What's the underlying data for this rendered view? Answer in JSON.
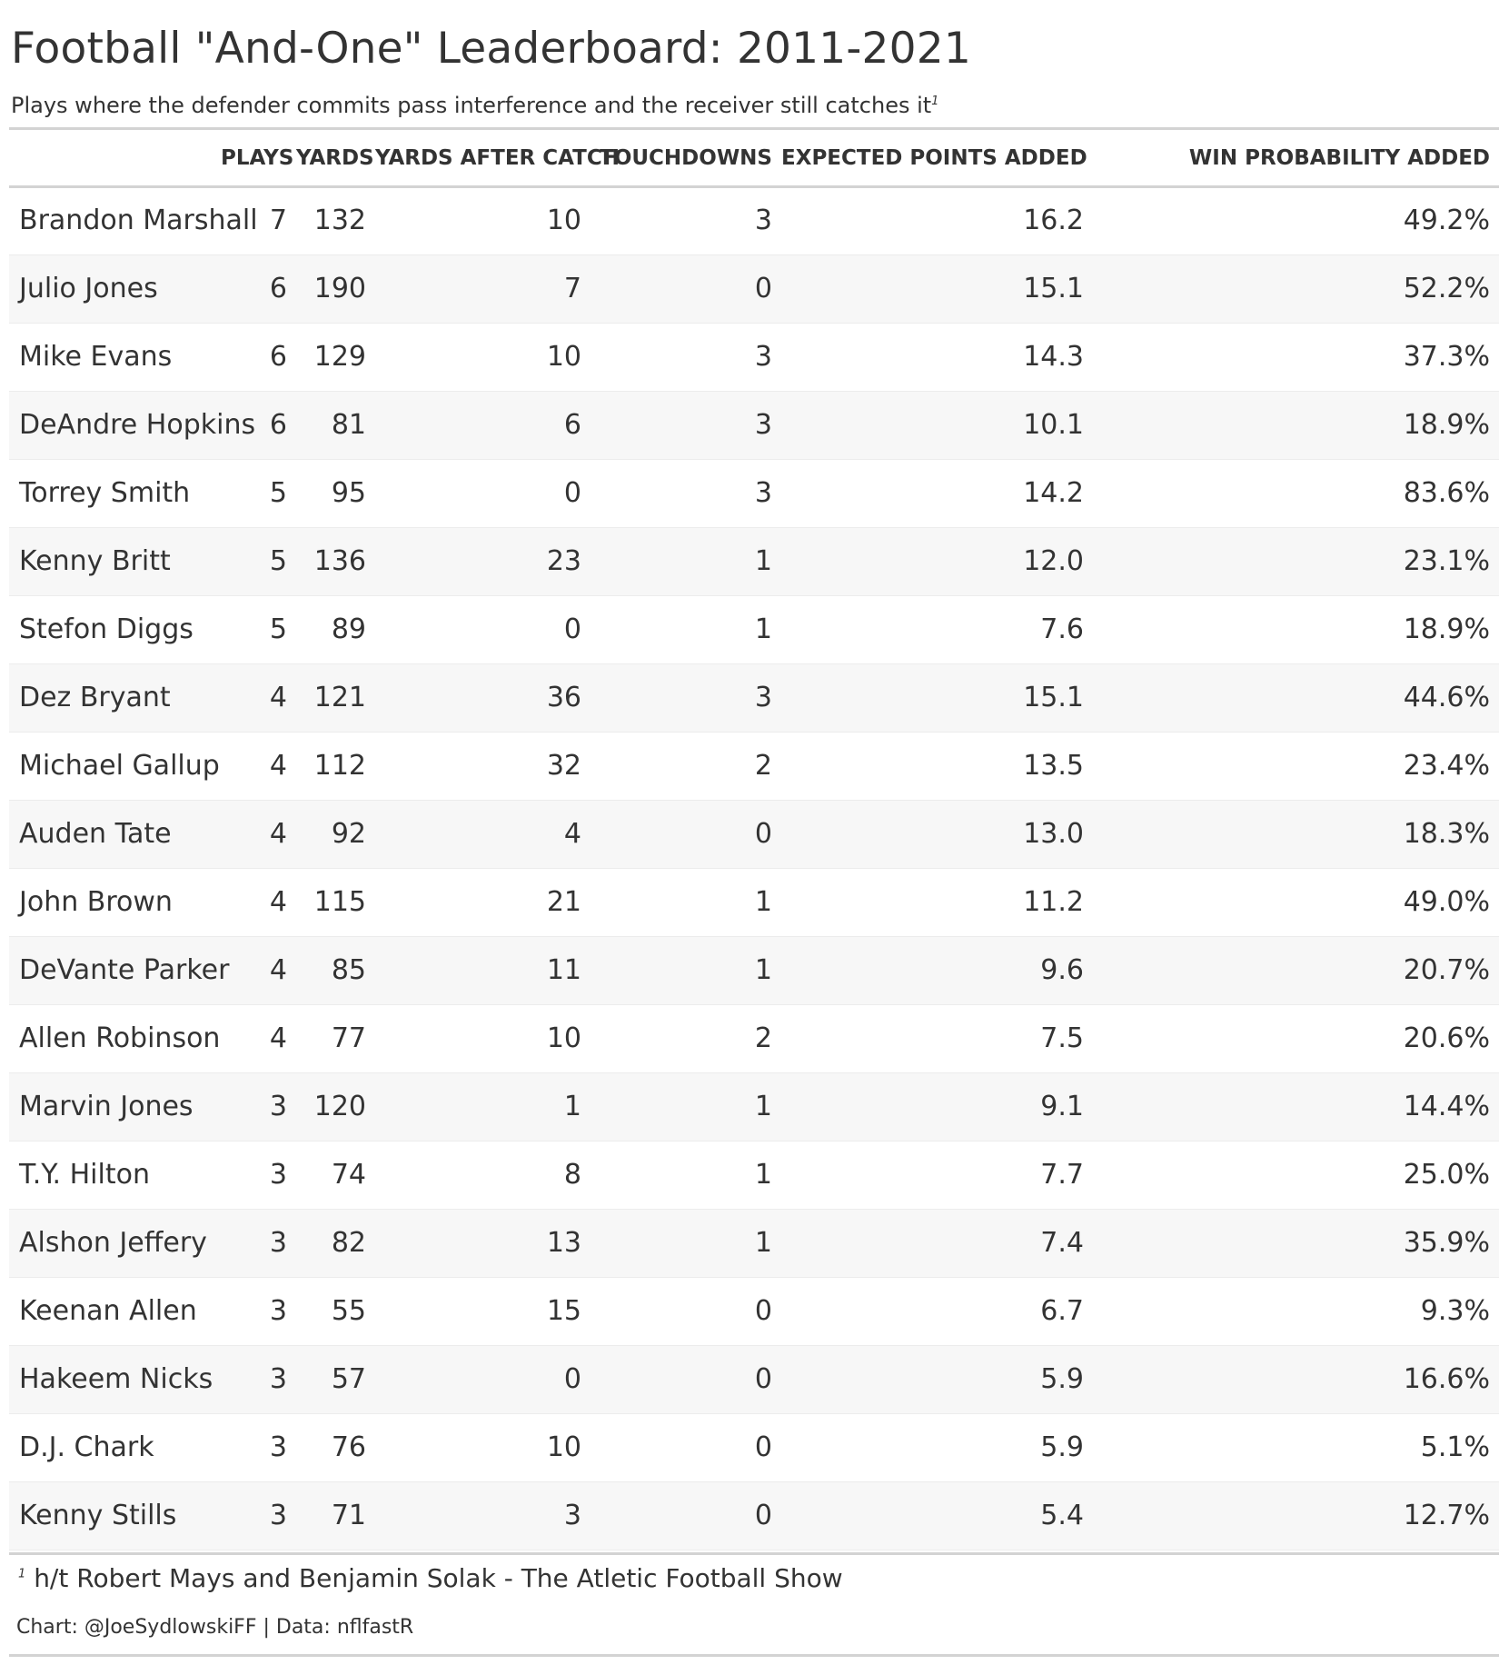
{
  "chart_data": {
    "type": "table",
    "title": "Football \"And-One\" Leaderboard: 2011-2021",
    "subtitle": "Plays where the defender commits pass interference and the receiver still catches it",
    "subtitle_footnote_mark": "1",
    "columns": [
      "",
      "PLAYS",
      "YARDS",
      "YARDS AFTER CATCH",
      "TOUCHDOWNS",
      "EXPECTED POINTS ADDED",
      "WIN PROBABILITY ADDED"
    ],
    "rows": [
      [
        "Brandon Marshall",
        "7",
        "132",
        "10",
        "3",
        "16.2",
        "49.2%"
      ],
      [
        "Julio Jones",
        "6",
        "190",
        "7",
        "0",
        "15.1",
        "52.2%"
      ],
      [
        "Mike Evans",
        "6",
        "129",
        "10",
        "3",
        "14.3",
        "37.3%"
      ],
      [
        "DeAndre Hopkins",
        "6",
        "81",
        "6",
        "3",
        "10.1",
        "18.9%"
      ],
      [
        "Torrey Smith",
        "5",
        "95",
        "0",
        "3",
        "14.2",
        "83.6%"
      ],
      [
        "Kenny Britt",
        "5",
        "136",
        "23",
        "1",
        "12.0",
        "23.1%"
      ],
      [
        "Stefon Diggs",
        "5",
        "89",
        "0",
        "1",
        "7.6",
        "18.9%"
      ],
      [
        "Dez Bryant",
        "4",
        "121",
        "36",
        "3",
        "15.1",
        "44.6%"
      ],
      [
        "Michael Gallup",
        "4",
        "112",
        "32",
        "2",
        "13.5",
        "23.4%"
      ],
      [
        "Auden Tate",
        "4",
        "92",
        "4",
        "0",
        "13.0",
        "18.3%"
      ],
      [
        "John Brown",
        "4",
        "115",
        "21",
        "1",
        "11.2",
        "49.0%"
      ],
      [
        "DeVante Parker",
        "4",
        "85",
        "11",
        "1",
        "9.6",
        "20.7%"
      ],
      [
        "Allen Robinson",
        "4",
        "77",
        "10",
        "2",
        "7.5",
        "20.6%"
      ],
      [
        "Marvin Jones",
        "3",
        "120",
        "1",
        "1",
        "9.1",
        "14.4%"
      ],
      [
        "T.Y. Hilton",
        "3",
        "74",
        "8",
        "1",
        "7.7",
        "25.0%"
      ],
      [
        "Alshon Jeffery",
        "3",
        "82",
        "13",
        "1",
        "7.4",
        "35.9%"
      ],
      [
        "Keenan Allen",
        "3",
        "55",
        "15",
        "0",
        "6.7",
        "9.3%"
      ],
      [
        "Hakeem Nicks",
        "3",
        "57",
        "0",
        "0",
        "5.9",
        "16.6%"
      ],
      [
        "D.J. Chark",
        "3",
        "76",
        "10",
        "0",
        "5.9",
        "5.1%"
      ],
      [
        "Kenny Stills",
        "3",
        "71",
        "3",
        "0",
        "5.4",
        "12.7%"
      ]
    ],
    "footnote_mark": "1",
    "footnote": "h/t Robert Mays and Benjamin Solak - The Atletic Football Show",
    "source": "Chart: @JoeSydlowskiFF | Data: nflfastR"
  },
  "colors": {
    "text": "#333333",
    "rule": "#d3d3d3",
    "zebra": "#f7f7f7"
  }
}
